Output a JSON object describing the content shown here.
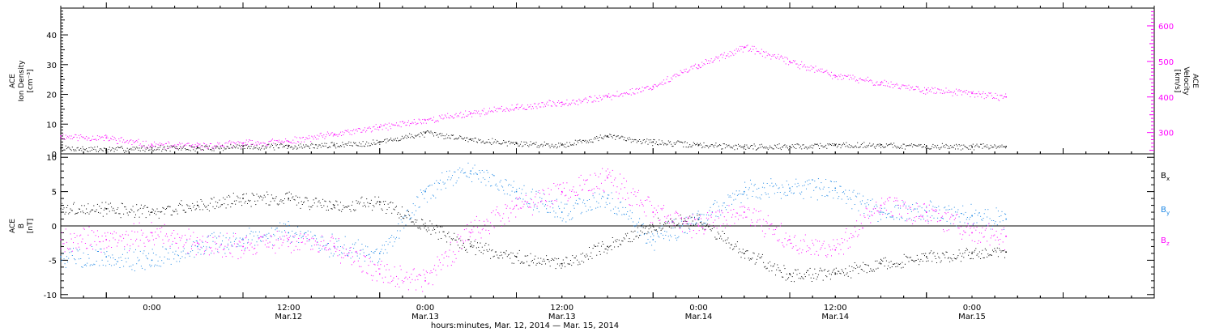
{
  "chart_data": [
    {
      "type": "scatter",
      "panel": "top",
      "x_range": [
        "2014-03-11T16:00",
        "2014-03-15T16:00"
      ],
      "y_left": {
        "label_lines": [
          "ACE",
          "Ion Density",
          "[cm⁻³]"
        ],
        "ticks": [
          0,
          10,
          20,
          30,
          40
        ],
        "ylim": [
          0,
          49
        ]
      },
      "y_right": {
        "label_lines": [
          "ACE",
          "Velocity",
          "[km/s]"
        ],
        "ticks": [
          300,
          400,
          500,
          600
        ],
        "ylim": [
          240,
          650
        ],
        "color": "#ff00ff"
      },
      "series": [
        {
          "color": "#000000",
          "axis": "left",
          "x": [
            "2014-03-11T16:00",
            "2014-03-11T20:00",
            "2014-03-12T00:00",
            "2014-03-12T04:00",
            "2014-03-12T08:00",
            "2014-03-12T12:00",
            "2014-03-12T16:00",
            "2014-03-12T20:00",
            "2014-03-13T00:00",
            "2014-03-13T04:00",
            "2014-03-13T08:00",
            "2014-03-13T12:00",
            "2014-03-13T16:00",
            "2014-03-13T20:00",
            "2014-03-14T00:00",
            "2014-03-14T04:00",
            "2014-03-14T08:00",
            "2014-03-14T12:00",
            "2014-03-14T16:00",
            "2014-03-14T20:00",
            "2014-03-15T00:00",
            "2014-03-15T03:00"
          ],
          "values": [
            2,
            1.5,
            2,
            2,
            2.5,
            2.5,
            3,
            4,
            7,
            5,
            3.5,
            3,
            6,
            4,
            3,
            2.5,
            2.5,
            3,
            3,
            2.5,
            2.5,
            2.5
          ]
        },
        {
          "color": "#ff00ff",
          "axis": "right",
          "x": [
            "2014-03-11T16:00",
            "2014-03-11T20:00",
            "2014-03-12T00:00",
            "2014-03-12T04:00",
            "2014-03-12T08:00",
            "2014-03-12T12:00",
            "2014-03-12T16:00",
            "2014-03-12T20:00",
            "2014-03-13T00:00",
            "2014-03-13T04:00",
            "2014-03-13T08:00",
            "2014-03-13T12:00",
            "2014-03-13T16:00",
            "2014-03-13T20:00",
            "2014-03-14T00:00",
            "2014-03-14T04:00",
            "2014-03-14T08:00",
            "2014-03-14T12:00",
            "2014-03-14T16:00",
            "2014-03-14T20:00",
            "2014-03-15T00:00",
            "2014-03-15T03:00"
          ],
          "values": [
            290,
            285,
            265,
            262,
            270,
            275,
            295,
            315,
            335,
            355,
            370,
            385,
            400,
            430,
            490,
            540,
            500,
            460,
            440,
            420,
            410,
            400
          ]
        }
      ]
    },
    {
      "type": "scatter",
      "panel": "bottom",
      "x_range": [
        "2014-03-11T16:00",
        "2014-03-15T16:00"
      ],
      "y": {
        "label_lines": [
          "ACE",
          "B",
          "[nT]"
        ],
        "ticks": [
          -10,
          -5,
          0,
          5,
          10
        ],
        "ylim": [
          -10.5,
          10.5
        ],
        "zero_line": true
      },
      "legend_position": "right",
      "series": [
        {
          "name": "Bx",
          "legend_main": "B",
          "legend_sub": "x",
          "color": "#000000",
          "x": [
            "2014-03-11T16:00",
            "2014-03-11T20:00",
            "2014-03-12T00:00",
            "2014-03-12T04:00",
            "2014-03-12T08:00",
            "2014-03-12T12:00",
            "2014-03-12T16:00",
            "2014-03-12T20:00",
            "2014-03-13T00:00",
            "2014-03-13T04:00",
            "2014-03-13T08:00",
            "2014-03-13T12:00",
            "2014-03-13T16:00",
            "2014-03-13T20:00",
            "2014-03-14T00:00",
            "2014-03-14T04:00",
            "2014-03-14T08:00",
            "2014-03-14T12:00",
            "2014-03-14T16:00",
            "2014-03-14T20:00",
            "2014-03-15T00:00",
            "2014-03-15T03:00"
          ],
          "values": [
            2.5,
            2.5,
            2,
            3,
            4,
            4,
            3,
            3.5,
            0,
            -3,
            -4.5,
            -5.5,
            -3,
            0,
            1,
            -4,
            -7,
            -7,
            -5.5,
            -4.5,
            -4,
            -3.8
          ]
        },
        {
          "name": "By",
          "legend_main": "B",
          "legend_sub": "y",
          "color": "#1e88e5",
          "x": [
            "2014-03-11T16:00",
            "2014-03-11T20:00",
            "2014-03-12T00:00",
            "2014-03-12T04:00",
            "2014-03-12T08:00",
            "2014-03-12T12:00",
            "2014-03-12T16:00",
            "2014-03-12T20:00",
            "2014-03-13T00:00",
            "2014-03-13T04:00",
            "2014-03-13T08:00",
            "2014-03-13T12:00",
            "2014-03-13T16:00",
            "2014-03-13T20:00",
            "2014-03-14T00:00",
            "2014-03-14T04:00",
            "2014-03-14T08:00",
            "2014-03-14T12:00",
            "2014-03-14T16:00",
            "2014-03-14T20:00",
            "2014-03-15T00:00",
            "2014-03-15T03:00"
          ],
          "values": [
            -4.5,
            -4.5,
            -5,
            -3,
            -2,
            -1,
            -3,
            -4,
            5,
            8,
            5,
            2,
            4,
            -2,
            1,
            5,
            5.5,
            5.5,
            2,
            2,
            1.5,
            1
          ]
        },
        {
          "name": "Bz",
          "legend_main": "B",
          "legend_sub": "z",
          "color": "#ff00ff",
          "x": [
            "2014-03-11T16:00",
            "2014-03-11T20:00",
            "2014-03-12T00:00",
            "2014-03-12T04:00",
            "2014-03-12T08:00",
            "2014-03-12T12:00",
            "2014-03-12T16:00",
            "2014-03-12T20:00",
            "2014-03-13T00:00",
            "2014-03-13T04:00",
            "2014-03-13T08:00",
            "2014-03-13T12:00",
            "2014-03-13T16:00",
            "2014-03-13T20:00",
            "2014-03-14T00:00",
            "2014-03-14T04:00",
            "2014-03-14T08:00",
            "2014-03-14T12:00",
            "2014-03-14T16:00",
            "2014-03-14T20:00",
            "2014-03-15T00:00",
            "2014-03-15T03:00"
          ],
          "values": [
            -2,
            -2,
            -1,
            -2.5,
            -3,
            -2,
            -3,
            -7,
            -8,
            -1,
            3,
            5,
            7,
            2,
            0,
            2,
            -2,
            -3.5,
            3,
            2,
            -1,
            -1.5
          ]
        }
      ]
    }
  ],
  "x_axis": {
    "ticks": [
      {
        "x": "2014-03-12T00:00",
        "time": "0:00",
        "date": ""
      },
      {
        "x": "2014-03-12T12:00",
        "time": "12:00",
        "date": "Mar.12"
      },
      {
        "x": "2014-03-13T00:00",
        "time": "0:00",
        "date": "Mar.13"
      },
      {
        "x": "2014-03-13T12:00",
        "time": "12:00",
        "date": "Mar.13"
      },
      {
        "x": "2014-03-14T00:00",
        "time": "0:00",
        "date": "Mar.14"
      },
      {
        "x": "2014-03-14T12:00",
        "time": "12:00",
        "date": "Mar.14"
      },
      {
        "x": "2014-03-15T00:00",
        "time": "0:00",
        "date": "Mar.15"
      },
      {
        "x": "2014-03-15T12:00",
        "time": "",
        "date": ""
      }
    ],
    "label": "hours:minutes, Mar. 12, 2014 — Mar. 15, 2014"
  }
}
